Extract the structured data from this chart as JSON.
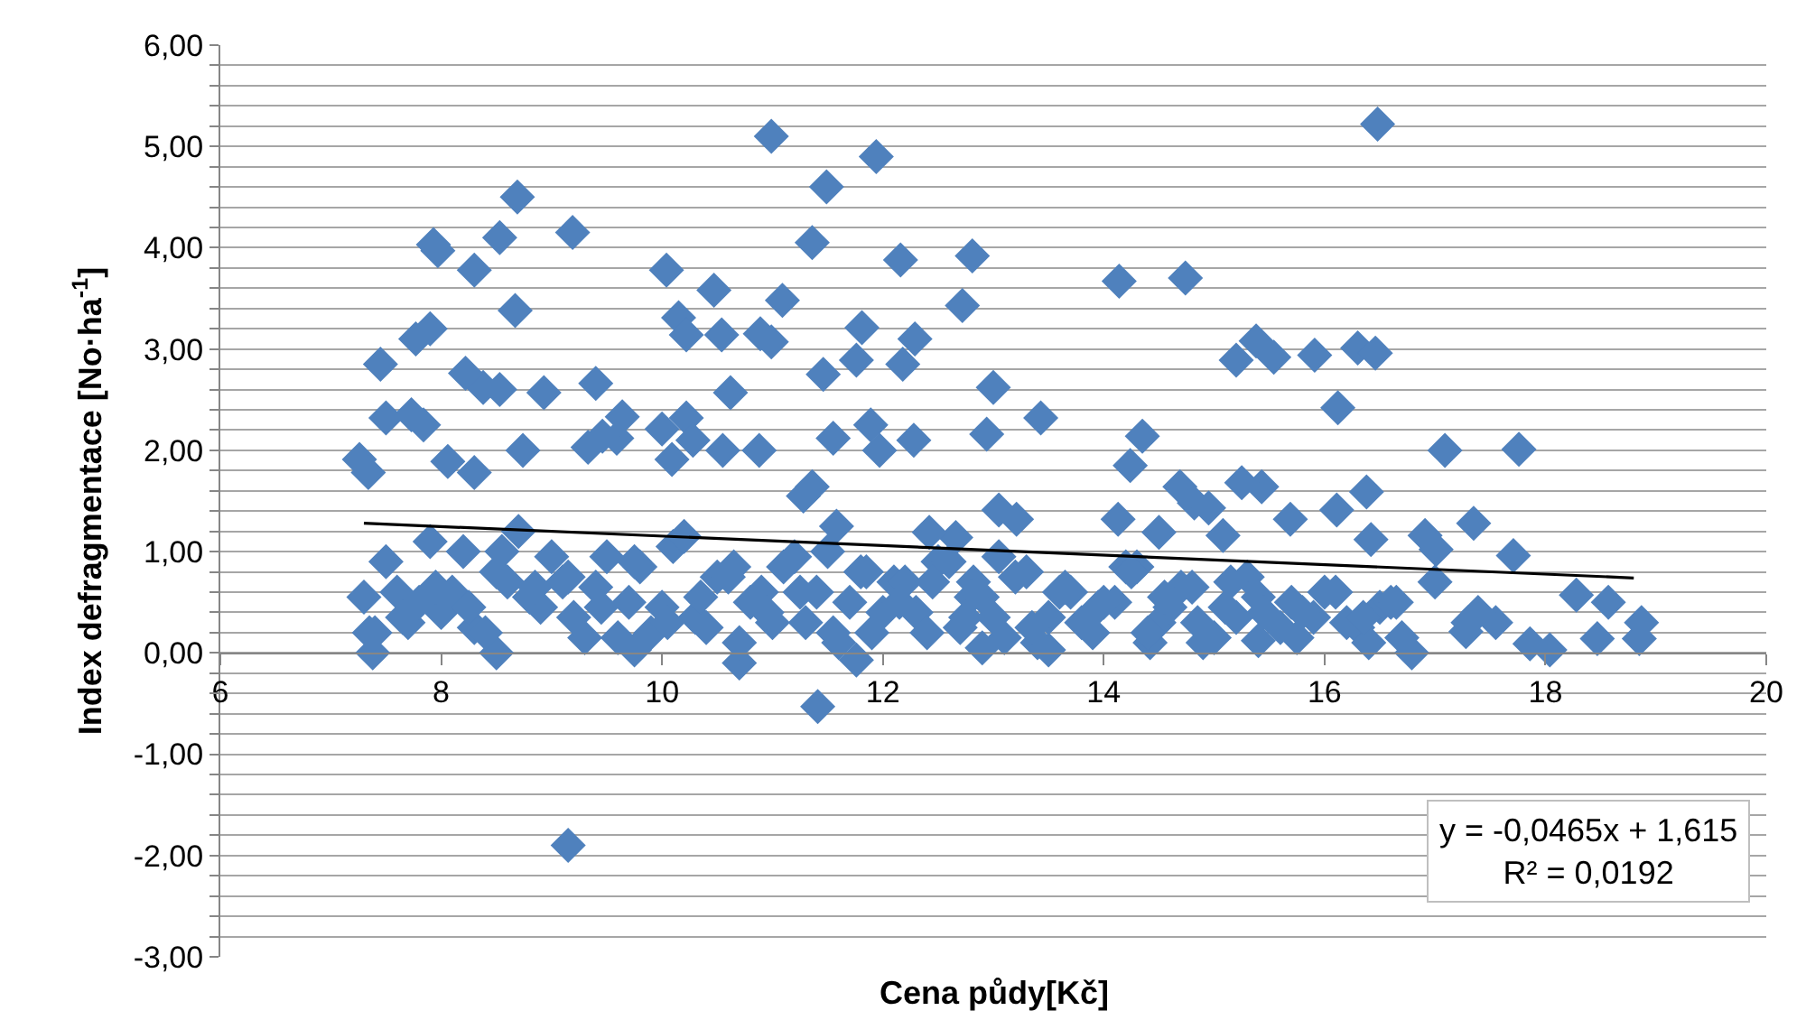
{
  "chart_data": {
    "type": "scatter",
    "xlabel": "Cena půdy[Kč]",
    "ylabel": "Index defragmentace [No·ha$^{-1}$]",
    "annotations": [
      "y = -0,0465x + 1,615",
      "R² = 0,0192"
    ],
    "xlim": [
      6,
      20
    ],
    "xticks": [
      6,
      8,
      10,
      12,
      14,
      16,
      18,
      20
    ],
    "ylim": [
      -3,
      6
    ],
    "yticks": [
      {
        "value": -3,
        "label": "-3,00"
      },
      {
        "value": -2.8,
        "label": null
      },
      {
        "value": -2.6,
        "label": null
      },
      {
        "value": -2.4,
        "label": null
      },
      {
        "value": -2.2,
        "label": null
      },
      {
        "value": -2,
        "label": "-2,00"
      },
      {
        "value": -1.8,
        "label": null
      },
      {
        "value": -1.6,
        "label": null
      },
      {
        "value": -1.4,
        "label": null
      },
      {
        "value": -1.2,
        "label": null
      },
      {
        "value": -1,
        "label": "-1,00"
      },
      {
        "value": -0.8,
        "label": null
      },
      {
        "value": -0.6,
        "label": null
      },
      {
        "value": -0.4,
        "label": null
      },
      {
        "value": -0.2,
        "label": null
      },
      {
        "value": 0,
        "label": "0,00"
      },
      {
        "value": 0.2,
        "label": null
      },
      {
        "value": 0.4,
        "label": null
      },
      {
        "value": 0.6,
        "label": null
      },
      {
        "value": 0.8,
        "label": null
      },
      {
        "value": 1,
        "label": "1,00"
      },
      {
        "value": 1.2,
        "label": null
      },
      {
        "value": 1.4,
        "label": null
      },
      {
        "value": 1.6,
        "label": null
      },
      {
        "value": 1.8,
        "label": null
      },
      {
        "value": 2,
        "label": "2,00"
      },
      {
        "value": 2.2,
        "label": null
      },
      {
        "value": 2.4,
        "label": null
      },
      {
        "value": 2.6,
        "label": null
      },
      {
        "value": 2.8,
        "label": null
      },
      {
        "value": 3,
        "label": "3,00"
      },
      {
        "value": 3.2,
        "label": null
      },
      {
        "value": 3.4,
        "label": null
      },
      {
        "value": 3.6,
        "label": null
      },
      {
        "value": 3.8,
        "label": null
      },
      {
        "value": 4,
        "label": "4,00"
      },
      {
        "value": 4.2,
        "label": null
      },
      {
        "value": 4.4,
        "label": null
      },
      {
        "value": 4.6,
        "label": null
      },
      {
        "value": 4.8,
        "label": null
      },
      {
        "value": 5,
        "label": "5,00"
      },
      {
        "value": 5.2,
        "label": null
      },
      {
        "value": 5.4,
        "label": null
      },
      {
        "value": 5.6,
        "label": null
      },
      {
        "value": 5.8,
        "label": null
      },
      {
        "value": 6,
        "label": "6,00"
      }
    ],
    "grid": "y",
    "marker": "diamond",
    "series": [
      {
        "color": "#4f81bd",
        "x": [
          9.15,
          10.99,
          16.48,
          11.94,
          11.49,
          11.36,
          8.69,
          9.19,
          7.93,
          7.97,
          8.53,
          8.3,
          12.81,
          14.14,
          14.74,
          12.16,
          10.04,
          10.47,
          8.67,
          10.54,
          7.9,
          7.77,
          11.09,
          10.89,
          10.99,
          10.15,
          10.22,
          11.81,
          12.29,
          12.72,
          11.46,
          11.76,
          12.18,
          15.2,
          15.38,
          15.54,
          15.91,
          16.3,
          16.46,
          16.12,
          13.0,
          12.94,
          7.45,
          9.4,
          8.93,
          8.53,
          8.38,
          8.22,
          10.62,
          13.43,
          14.35,
          17.09,
          17.76,
          11.55,
          11.89,
          12.28,
          7.5,
          7.73,
          7.84,
          9.64,
          9.59,
          9.46,
          9.33,
          8.06,
          8.3,
          8.74,
          10.0,
          10.22,
          10.28,
          10.55,
          10.09,
          7.26,
          7.34,
          10.88,
          11.97,
          14.24,
          14.69,
          14.82,
          14.95,
          15.43,
          15.25,
          15.69,
          16.38,
          17.35,
          16.42,
          16.91,
          17.01,
          17.71,
          13.05,
          13.21,
          14.13,
          14.5,
          16.11,
          15.08,
          12.66,
          12.82,
          11.36,
          11.28,
          11.58,
          12.42,
          7.38,
          10.7,
          11.41,
          11.76,
          8.5,
          9.75,
          12.9,
          13.5,
          14.42,
          15.4,
          16.79,
          18.04,
          18.47,
          18.85,
          18.87,
          18.28,
          18.57,
          17.28,
          17.55,
          17.86,
          17.39,
          7.3,
          7.5,
          7.7,
          7.9,
          8.1,
          8.3,
          8.5,
          8.7,
          8.9,
          9.1,
          9.3,
          9.5,
          9.7,
          9.9,
          10.1,
          10.3,
          10.5,
          10.7,
          10.9,
          11.1,
          11.3,
          11.5,
          11.7,
          11.9,
          12.1,
          12.3,
          12.5,
          12.7,
          12.9,
          13.1,
          13.3,
          13.5,
          13.7,
          13.9,
          14.1,
          14.3,
          14.5,
          14.7,
          14.9,
          15.1,
          15.3,
          15.7,
          15.9,
          16.1,
          16.3,
          16.5,
          16.7,
          17.0,
          17.3,
          7.4,
          7.6,
          7.8,
          8.0,
          8.2,
          8.4,
          8.6,
          8.8,
          9.0,
          9.2,
          9.4,
          9.6,
          9.8,
          10.0,
          10.2,
          10.4,
          10.6,
          10.8,
          11.0,
          11.2,
          11.4,
          11.6,
          11.8,
          12.0,
          12.2,
          12.4,
          12.6,
          12.8,
          13.0,
          13.2,
          13.4,
          13.6,
          13.8,
          14.0,
          14.2,
          14.4,
          14.6,
          14.8,
          15.0,
          15.2,
          15.4,
          15.6,
          15.8,
          16.0,
          16.2,
          16.4,
          16.6,
          7.35,
          7.65,
          7.95,
          8.25,
          8.55,
          8.85,
          9.15,
          9.45,
          9.75,
          10.05,
          10.35,
          10.65,
          10.95,
          11.25,
          11.55,
          11.85,
          12.15,
          12.45,
          12.75,
          13.05,
          13.35,
          13.65,
          13.95,
          14.25,
          14.55,
          14.85,
          15.15,
          15.45,
          15.75,
          16.35,
          16.65
        ],
        "values": [
          -1.9,
          5.1,
          5.22,
          4.9,
          4.6,
          4.05,
          4.5,
          4.15,
          4.03,
          3.97,
          4.1,
          3.78,
          3.92,
          3.67,
          3.7,
          3.88,
          3.78,
          3.58,
          3.38,
          3.14,
          3.2,
          3.1,
          3.48,
          3.15,
          3.07,
          3.31,
          3.14,
          3.21,
          3.1,
          3.43,
          2.75,
          2.89,
          2.85,
          2.89,
          3.08,
          2.92,
          2.94,
          3.01,
          2.96,
          2.42,
          2.62,
          2.16,
          2.85,
          2.66,
          2.57,
          2.6,
          2.62,
          2.76,
          2.57,
          2.32,
          2.14,
          2.0,
          2.01,
          2.12,
          2.25,
          2.1,
          2.32,
          2.35,
          2.25,
          2.33,
          2.12,
          2.14,
          2.03,
          1.89,
          1.78,
          2.0,
          2.21,
          2.32,
          2.1,
          2.0,
          1.91,
          1.91,
          1.78,
          2.0,
          2.0,
          1.85,
          1.64,
          1.48,
          1.43,
          1.64,
          1.68,
          1.32,
          1.59,
          1.28,
          1.12,
          1.16,
          1.02,
          0.96,
          1.41,
          1.32,
          1.32,
          1.19,
          1.41,
          1.16,
          1.14,
          0.7,
          1.64,
          1.55,
          1.25,
          1.19,
          0.0,
          -0.1,
          -0.53,
          -0.07,
          0.0,
          0.03,
          0.05,
          0.03,
          0.1,
          0.12,
          0.0,
          0.03,
          0.14,
          0.14,
          0.3,
          0.57,
          0.5,
          0.21,
          0.3,
          0.09,
          0.4,
          0.55,
          0.9,
          0.3,
          1.1,
          0.6,
          0.25,
          0.8,
          1.2,
          0.45,
          0.7,
          0.15,
          0.95,
          0.5,
          0.2,
          1.05,
          0.35,
          0.75,
          0.1,
          0.6,
          0.85,
          0.3,
          1.0,
          0.5,
          0.2,
          0.7,
          0.4,
          0.9,
          0.25,
          0.55,
          0.15,
          0.8,
          0.35,
          0.6,
          0.2,
          0.5,
          0.85,
          0.3,
          0.65,
          0.1,
          0.45,
          0.75,
          0.5,
          0.35,
          0.6,
          0.25,
          0.45,
          0.15,
          0.7,
          0.3,
          0.2,
          0.6,
          0.5,
          0.4,
          1.0,
          0.2,
          0.7,
          0.55,
          0.95,
          0.35,
          0.65,
          0.15,
          0.85,
          0.45,
          1.15,
          0.25,
          0.75,
          0.5,
          0.3,
          0.95,
          0.6,
          0.1,
          0.8,
          0.4,
          0.7,
          0.2,
          0.9,
          0.55,
          0.35,
          0.75,
          0.1,
          0.6,
          0.3,
          0.5,
          0.85,
          0.2,
          0.45,
          0.65,
          0.15,
          0.35,
          0.55,
          0.25,
          0.4,
          0.6,
          0.3,
          0.1,
          0.5,
          0.2,
          0.35,
          0.65,
          0.45,
          1.0,
          0.65,
          0.75,
          0.45,
          0.9,
          0.3,
          0.55,
          0.85,
          0.4,
          0.6,
          0.2,
          0.8,
          0.5,
          0.7,
          0.35,
          0.95,
          0.25,
          0.65,
          0.45,
          0.8,
          0.55,
          0.3,
          0.7,
          0.4,
          0.15,
          0.35,
          0.5
        ]
      },
      {
        "type": "line",
        "color": "#000000",
        "marker": "none",
        "x": [
          7.3,
          18.8
        ],
        "values": [
          1.28,
          0.74
        ]
      }
    ]
  }
}
